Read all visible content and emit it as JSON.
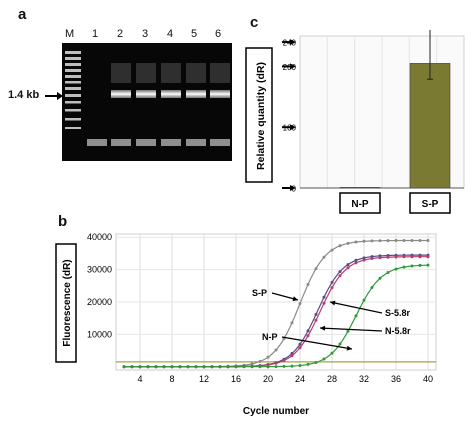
{
  "panels": {
    "a": {
      "letter": "a",
      "lanes": [
        "M",
        "1",
        "2",
        "3",
        "4",
        "5",
        "6"
      ],
      "marker_label": "1.4 kb"
    },
    "c": {
      "letter": "c"
    },
    "b": {
      "letter": "b"
    }
  },
  "chart_data": [
    {
      "panel": "c",
      "type": "bar",
      "categories": [
        "N-P",
        "S-P"
      ],
      "values": [
        1,
        205
      ],
      "error": [
        0,
        58
      ],
      "bar_color": "#7a7a33",
      "ylabel": "Relative quantity (dR)",
      "yticks": [
        0,
        100,
        200,
        240
      ],
      "ylim": [
        0,
        250
      ]
    },
    {
      "panel": "b",
      "type": "line",
      "xlabel": "Cycle number",
      "ylabel": "Fluorescence  (dR)",
      "xticks": [
        4,
        8,
        12,
        16,
        20,
        24,
        28,
        32,
        36,
        40
      ],
      "yticks": [
        10000,
        20000,
        30000,
        40000
      ],
      "xlim": [
        1,
        41
      ],
      "ylim": [
        -1000,
        41000
      ],
      "threshold": 1500,
      "threshold_color": "#a6a640",
      "series": [
        {
          "color": "#8a8a8a",
          "plateau": 39000,
          "midpoint": 24.0,
          "slope": 1.0
        },
        {
          "color": "#5a4a8a",
          "plateau": 34500,
          "midpoint": 26.2,
          "slope": 1.0
        },
        {
          "color": "#b83b6e",
          "plateau": 34000,
          "midpoint": 26.5,
          "slope": 1.0
        },
        {
          "color": "#2e9a3a",
          "plateau": 31500,
          "midpoint": 31.0,
          "slope": 1.0
        }
      ],
      "annotations": [
        {
          "label": "S-P"
        },
        {
          "label": "S-5.8r"
        },
        {
          "label": "N-5.8r"
        },
        {
          "label": "N-P"
        }
      ]
    }
  ]
}
